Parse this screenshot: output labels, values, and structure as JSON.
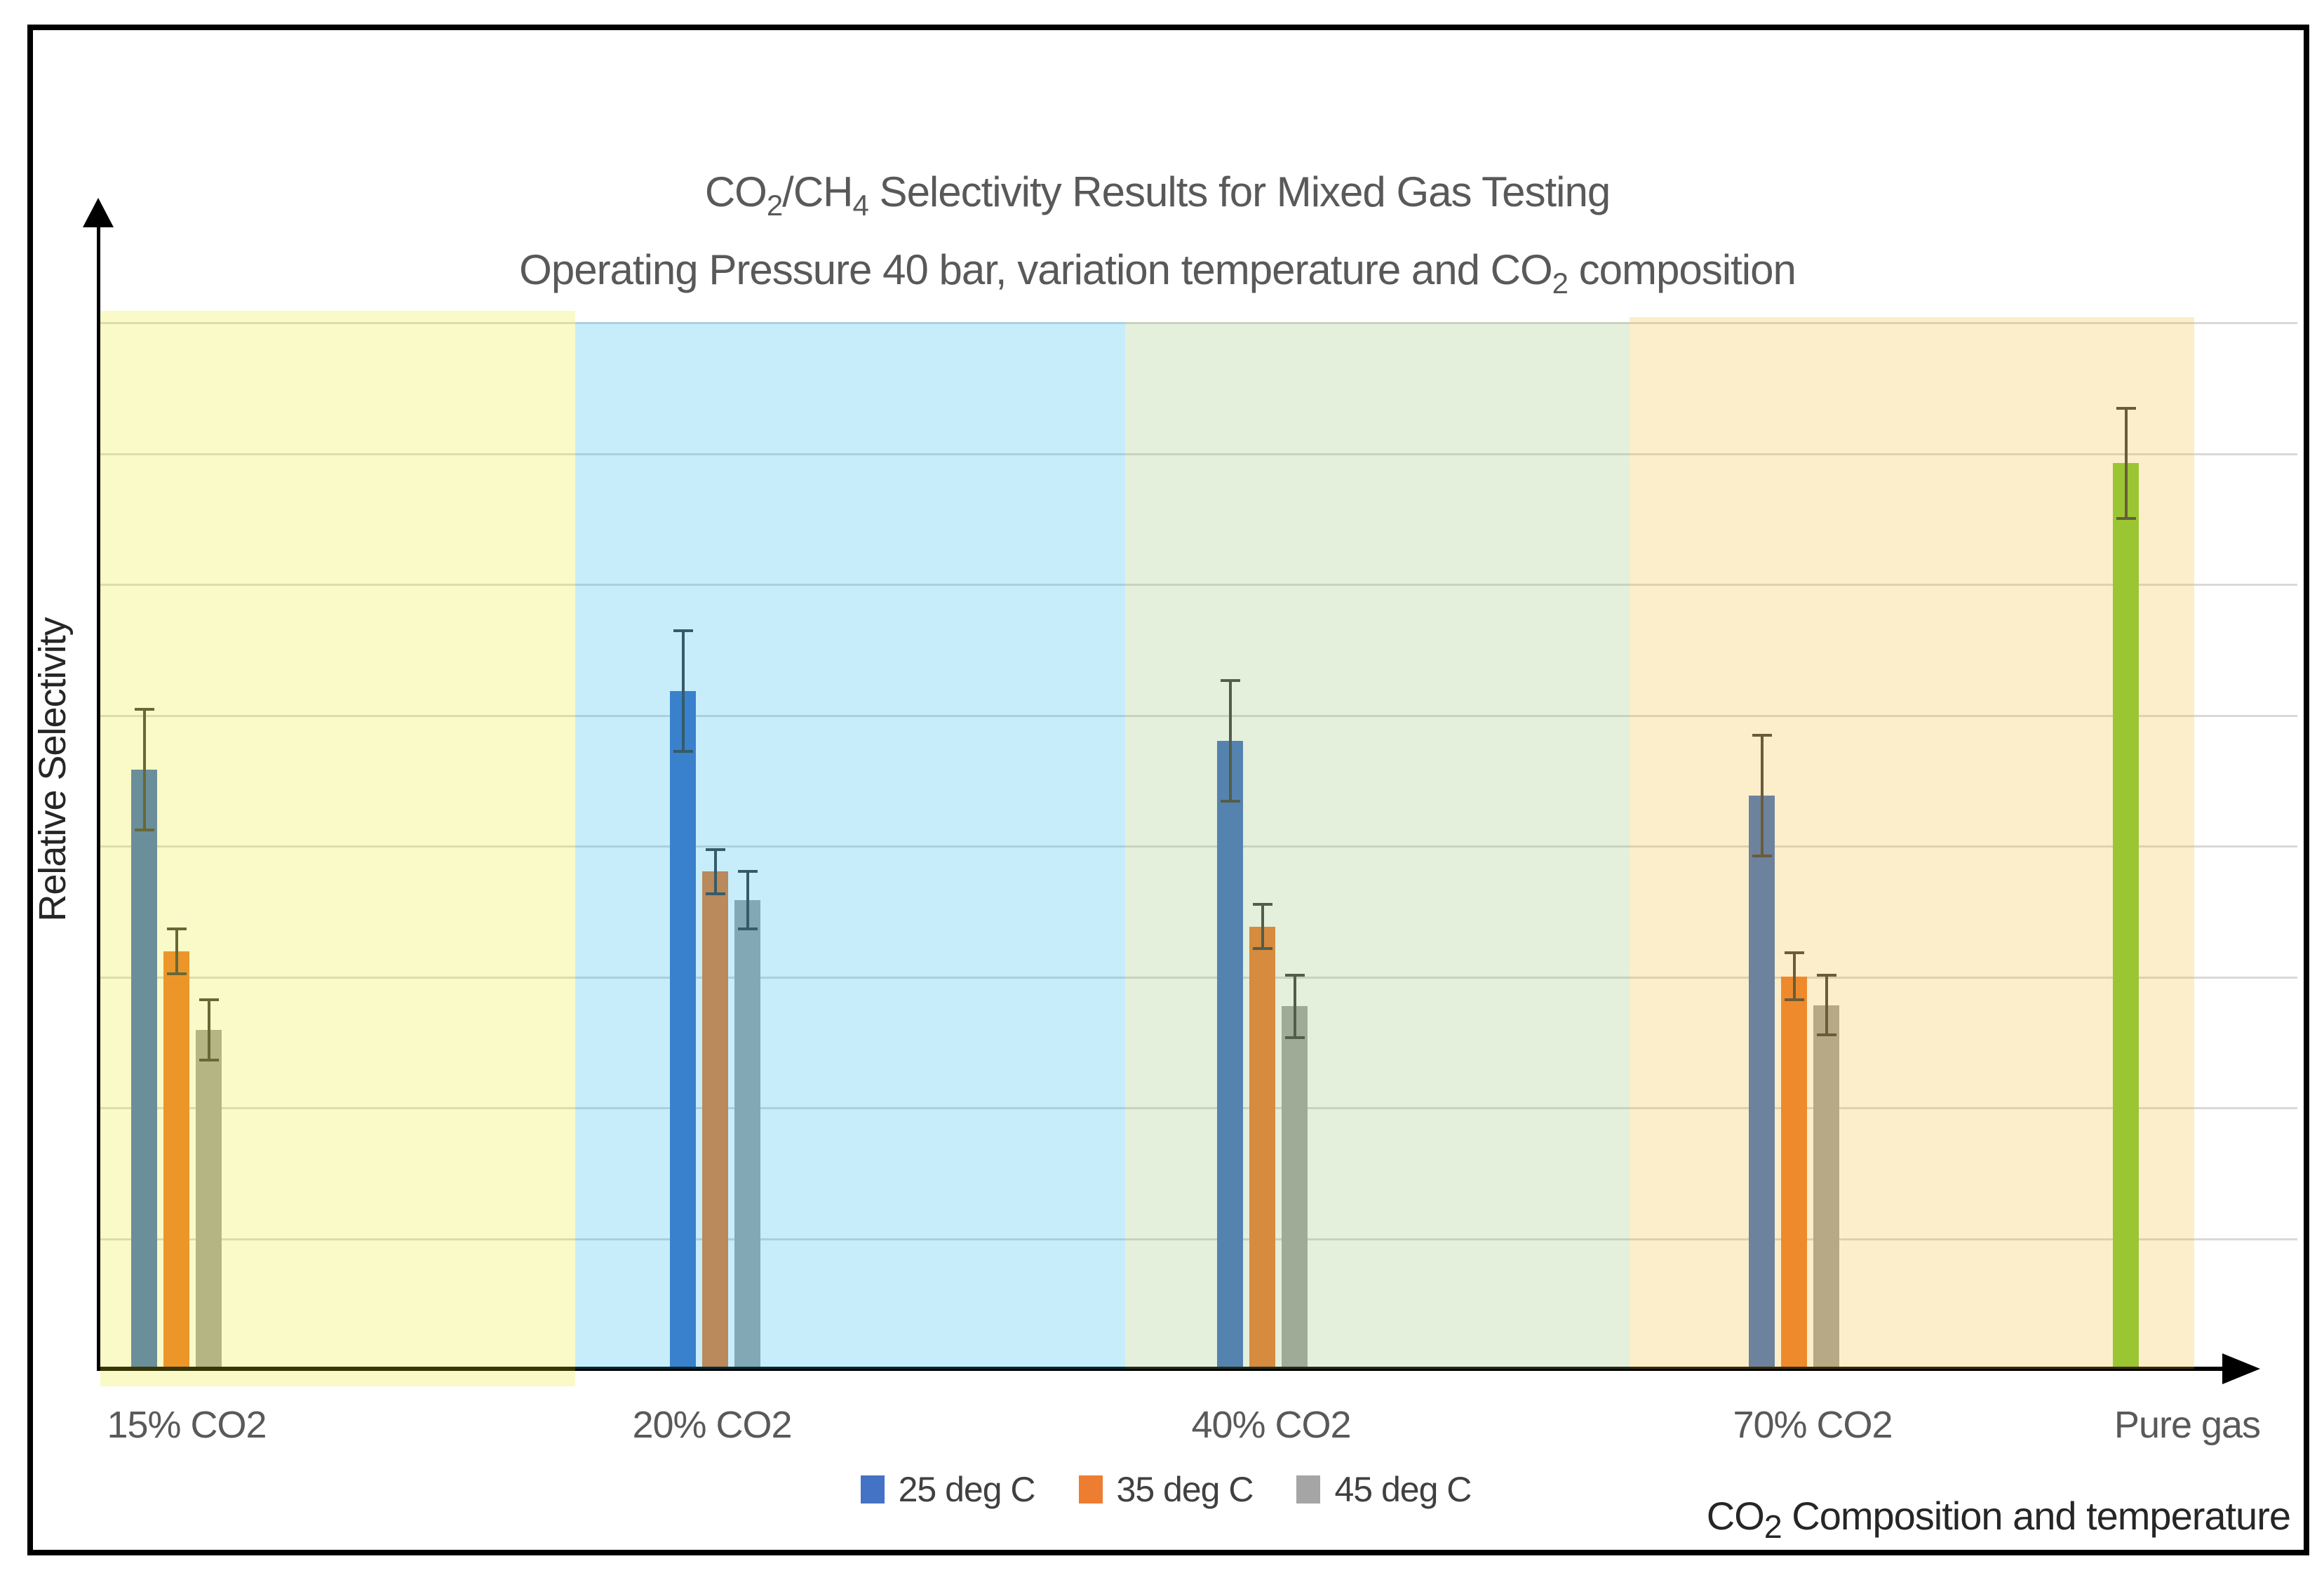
{
  "chart_data": {
    "type": "bar",
    "title": "CO2/CH4 Selectivity Results for Mixed Gas Testing",
    "subtitle": "Operating Pressure 40 bar, variation temperature and CO2 composition",
    "xlabel": "CO2 Composition and temperature",
    "ylabel": "Relative Selectivity",
    "ylim": [
      0,
      8.4
    ],
    "grid": true,
    "y_tick_labels": "none shown (relative units, 8 unlabeled gridlines)",
    "legend_position": "bottom-center",
    "categories": [
      "15% CO2",
      "20% CO2",
      "40% CO2",
      "70% CO2",
      "Pure gas"
    ],
    "series": [
      {
        "name": "25 deg C",
        "color": "#4472C4",
        "values": [
          4.58,
          5.18,
          4.8,
          4.38,
          null
        ],
        "errors": [
          0.46,
          0.46,
          0.46,
          0.46,
          null
        ]
      },
      {
        "name": "35 deg C",
        "color": "#ED7D31",
        "values": [
          3.19,
          3.8,
          3.38,
          3.0,
          null
        ],
        "errors": [
          0.17,
          0.17,
          0.17,
          0.18,
          null
        ]
      },
      {
        "name": "45 deg C",
        "color": "#A5A5A5",
        "values": [
          2.59,
          3.58,
          2.77,
          2.78,
          null
        ],
        "errors": [
          0.23,
          0.22,
          0.24,
          0.23,
          null
        ]
      },
      {
        "name": "Pure gas (single green bar, not in legend)",
        "color": "#7FCB3C",
        "values": [
          null,
          null,
          null,
          null,
          6.92
        ],
        "errors": [
          null,
          null,
          null,
          null,
          0.42
        ]
      }
    ],
    "background_bands": [
      {
        "span": "15% CO2",
        "color": "rgba(234,234,21,0.235)"
      },
      {
        "span": "20% CO2",
        "color": "rgba(23,178,233,0.235)"
      },
      {
        "span": "40% CO2",
        "color": "rgba(140,187,106,0.235)"
      },
      {
        "span": "70% CO2 + Pure gas",
        "color": "rgba(242,183,30,0.235)"
      }
    ],
    "error_bar_color": "#404040"
  },
  "title": {
    "l1_pre": "CO",
    "l1_sub1": "2",
    "l1_mid": "/CH",
    "l1_sub2": "4",
    "l1_rest": " Selectivity Results for Mixed Gas Testing",
    "l2_pre": "Operating Pressure 40 bar, variation temperature and CO",
    "l2_sub": "2",
    "l2_rest": " composition"
  },
  "axes": {
    "y_title": "Relative Selectivity",
    "x_pre": "CO",
    "x_sub": "2",
    "x_rest": " Composition and temperature"
  },
  "legend": [
    {
      "label": "25 deg C",
      "color": "#4472C4"
    },
    {
      "label": "35 deg C",
      "color": "#ED7D31"
    },
    {
      "label": "45 deg C",
      "color": "#A5A5A5"
    }
  ]
}
